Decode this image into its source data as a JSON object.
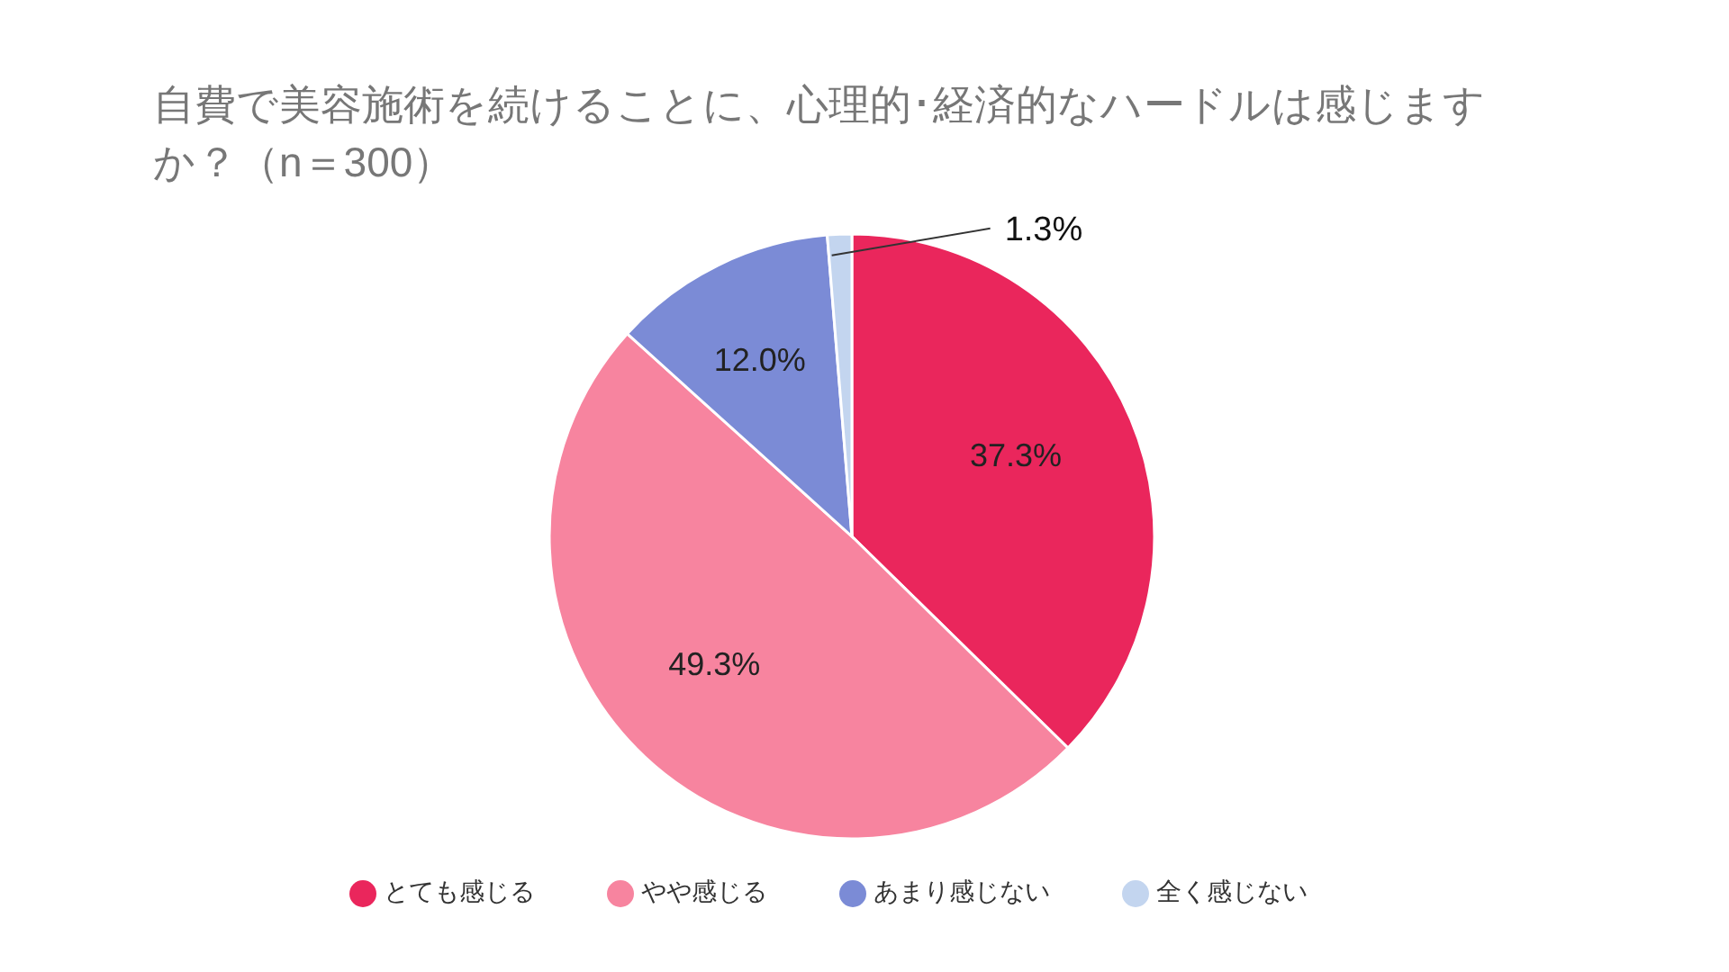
{
  "chart_data": {
    "type": "pie",
    "title": "自費で美容施術を続けることに、心理的･経済的なハードルは感じますか？（n＝300）",
    "categories": [
      "とても感じる",
      "やや感じる",
      "あまり感じない",
      "全く感じない"
    ],
    "values": [
      37.3,
      49.3,
      12.0,
      1.3
    ],
    "colors": [
      "#ea265c",
      "#f7849f",
      "#7b8bd6",
      "#c3d5ef"
    ],
    "value_labels": [
      "37.3%",
      "49.3%",
      "12.0%",
      "1.3%"
    ],
    "legend": "bottom"
  }
}
